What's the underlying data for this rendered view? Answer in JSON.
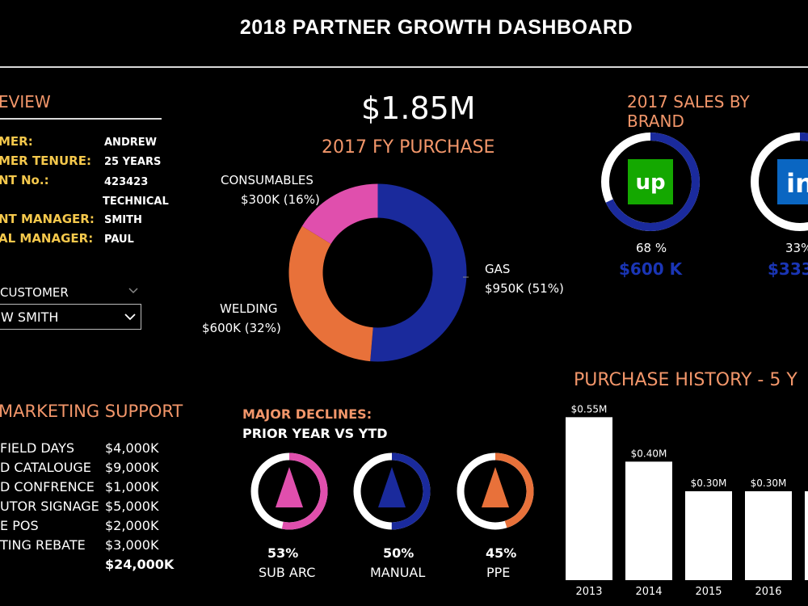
{
  "header": {
    "title": "2018 PARTNER GROWTH DASHBOARD"
  },
  "overview": {
    "title": "EVIEW",
    "rows": [
      {
        "label": "MER:",
        "value": "ANDREW"
      },
      {
        "label": "MER TENURE:",
        "value": "25 YEARS"
      },
      {
        "label": "NT No.:",
        "value": "423423"
      },
      {
        "label": "",
        "value": "TECHNICAL"
      },
      {
        "label": "NT MANAGER:",
        "value": "SMITH"
      },
      {
        "label": "AL MANAGER:",
        "value": "PAUL"
      }
    ]
  },
  "customer_filter": {
    "label": "CUSTOMER",
    "selected": "W SMITH"
  },
  "marketing": {
    "title": "MARKETING SUPPORT",
    "rows": [
      {
        "label": "FIELD DAYS",
        "value": "$4,000K"
      },
      {
        "label": "D CATALOUGE",
        "value": "$9,000K"
      },
      {
        "label": "D CONFRENCE",
        "value": "$1,000K"
      },
      {
        "label": "UTOR SIGNAGE",
        "value": "$5,000K"
      },
      {
        "label": "E POS",
        "value": "$2,000K"
      },
      {
        "label": "TING REBATE",
        "value": "$3,000K"
      }
    ],
    "total": "$24,000K"
  },
  "purchase": {
    "total": "$1.85M",
    "title": "2017 FY PURCHASE",
    "slices": [
      {
        "name": "GAS",
        "value_label": "$950K (51%)",
        "value": 950,
        "color": "#1a2a9c"
      },
      {
        "name": "WELDING",
        "value_label": "$600K (32%)",
        "value": 600,
        "color": "#e8713a"
      },
      {
        "name": "CONSUMABLES",
        "value_label": "$300K (16%)",
        "value": 300,
        "color": "#e04fad"
      }
    ]
  },
  "brands": {
    "title": "2017 SALES BY BRAND",
    "items": [
      {
        "icon": "upwork-icon",
        "logo_text": "up",
        "pct": "68 %",
        "fraction": 0.68,
        "amount": "$600 K",
        "logo_bg": "#14a800"
      },
      {
        "icon": "linkedin-icon",
        "logo_text": "in",
        "pct": "33%",
        "fraction": 0.33,
        "amount": "$333",
        "logo_bg": "#0a66c2"
      }
    ]
  },
  "declines": {
    "title_line1": "MAJOR DECLINES:",
    "title_line2": "PRIOR YEAR VS YTD",
    "items": [
      {
        "pct": "53%",
        "label": "SUB ARC",
        "fraction": 0.53,
        "color": "#e04fad"
      },
      {
        "pct": "50%",
        "label": "MANUAL",
        "fraction": 0.5,
        "color": "#1a2a9c"
      },
      {
        "pct": "45%",
        "label": "PPE",
        "fraction": 0.45,
        "color": "#e8713a"
      }
    ]
  },
  "history": {
    "title": "PURCHASE HISTORY - 5 Y",
    "chart_data": {
      "type": "bar",
      "categories": [
        "2013",
        "2014",
        "2015",
        "2016"
      ],
      "values": [
        0.55,
        0.4,
        0.3,
        0.3
      ],
      "data_labels": [
        "$0.55M",
        "$0.40M",
        "$0.30M",
        "$0.30M"
      ],
      "ylim": [
        0,
        0.6
      ]
    }
  }
}
